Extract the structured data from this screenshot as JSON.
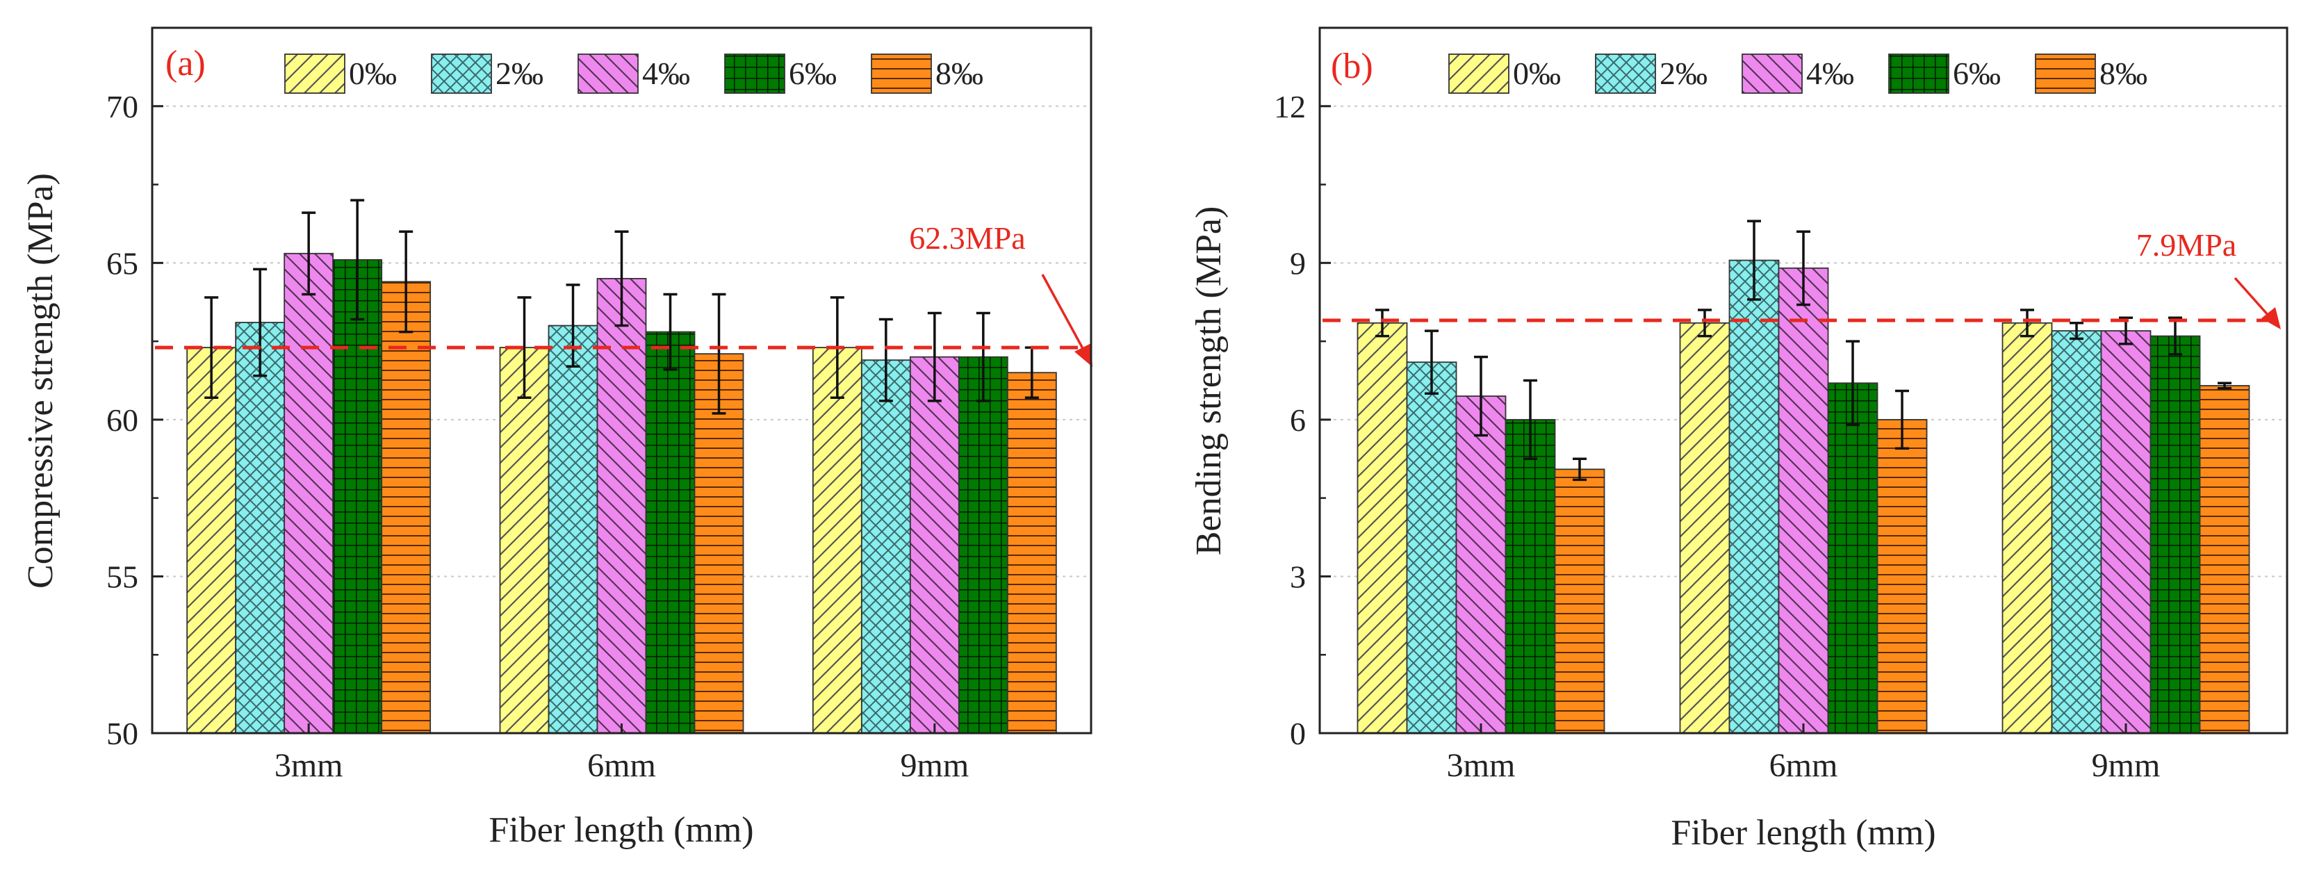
{
  "chart_data": [
    {
      "panel_label": "(a)",
      "type": "bar",
      "categories": [
        "3mm",
        "6mm",
        "9mm"
      ],
      "series": [
        {
          "name": "0‰",
          "values": [
            62.3,
            62.3,
            62.3
          ],
          "errors": [
            1.6,
            1.6,
            1.6
          ],
          "color": "#ffff88",
          "pattern": "diag"
        },
        {
          "name": "2‰",
          "values": [
            63.1,
            63.0,
            61.9
          ],
          "errors": [
            1.7,
            1.3,
            1.3
          ],
          "color": "#88eeee",
          "pattern": "cross"
        },
        {
          "name": "4‰",
          "values": [
            65.3,
            64.5,
            62.0
          ],
          "errors": [
            1.3,
            1.5,
            1.4
          ],
          "color": "#ee88ee",
          "pattern": "back"
        },
        {
          "name": "6‰",
          "values": [
            65.1,
            62.8,
            62.0
          ],
          "errors": [
            1.9,
            1.2,
            1.4
          ],
          "color": "#007a00",
          "pattern": "grid"
        },
        {
          "name": "8‰",
          "values": [
            64.4,
            62.1,
            61.5
          ],
          "errors": [
            1.6,
            1.9,
            0.8
          ],
          "color": "#ff8c1a",
          "pattern": "horiz"
        }
      ],
      "reference_line": {
        "value": 62.3,
        "label": "62.3MPa",
        "color": "#e8281e"
      },
      "xlabel": "Fiber length (mm)",
      "ylabel": "Compressive strength (MPa)",
      "ylim": [
        50,
        72.5
      ],
      "yticks": [
        50,
        55,
        60,
        65,
        70
      ],
      "grid": true,
      "legend": "top"
    },
    {
      "panel_label": "(b)",
      "type": "bar",
      "categories": [
        "3mm",
        "6mm",
        "9mm"
      ],
      "series": [
        {
          "name": "0‰",
          "values": [
            7.85,
            7.85,
            7.85
          ],
          "errors": [
            0.25,
            0.25,
            0.25
          ],
          "color": "#ffff88",
          "pattern": "diag"
        },
        {
          "name": "2‰",
          "values": [
            7.1,
            9.05,
            7.7
          ],
          "errors": [
            0.6,
            0.75,
            0.15
          ],
          "color": "#88eeee",
          "pattern": "cross"
        },
        {
          "name": "4‰",
          "values": [
            6.45,
            8.9,
            7.7
          ],
          "errors": [
            0.75,
            0.7,
            0.25
          ],
          "color": "#ee88ee",
          "pattern": "back"
        },
        {
          "name": "6‰",
          "values": [
            6.0,
            6.7,
            7.6
          ],
          "errors": [
            0.75,
            0.8,
            0.35
          ],
          "color": "#007a00",
          "pattern": "grid"
        },
        {
          "name": "8‰",
          "values": [
            5.05,
            6.0,
            6.65
          ],
          "errors": [
            0.2,
            0.55,
            0.05
          ],
          "color": "#ff8c1a",
          "pattern": "horiz"
        }
      ],
      "reference_line": {
        "value": 7.9,
        "label": "7.9MPa",
        "color": "#e8281e"
      },
      "xlabel": "Fiber length (mm)",
      "ylabel": "Bending strength (MPa)",
      "ylim": [
        0,
        13.5
      ],
      "yticks": [
        0,
        3,
        6,
        9,
        12
      ],
      "grid": true,
      "legend": "top"
    }
  ]
}
